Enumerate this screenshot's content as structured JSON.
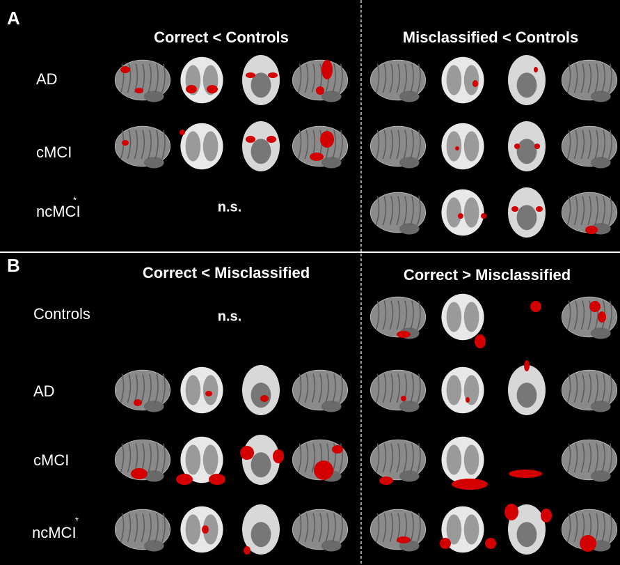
{
  "panel_a": {
    "label": "A",
    "left_header": "Correct < Controls",
    "right_header": "Misclassified < Controls",
    "rows": [
      {
        "label": "AD"
      },
      {
        "label": "cMCI"
      },
      {
        "label": "ncMCI",
        "sup": "*"
      }
    ],
    "left_note": "n.s."
  },
  "panel_b": {
    "label": "B",
    "left_header": "Correct < Misclassified",
    "right_header": "Correct > Misclassified",
    "rows": [
      {
        "label": "Controls"
      },
      {
        "label": "AD"
      },
      {
        "label": "cMCI"
      },
      {
        "label": "ncMCI",
        "sup": "*"
      }
    ],
    "left_note": "n.s."
  }
}
